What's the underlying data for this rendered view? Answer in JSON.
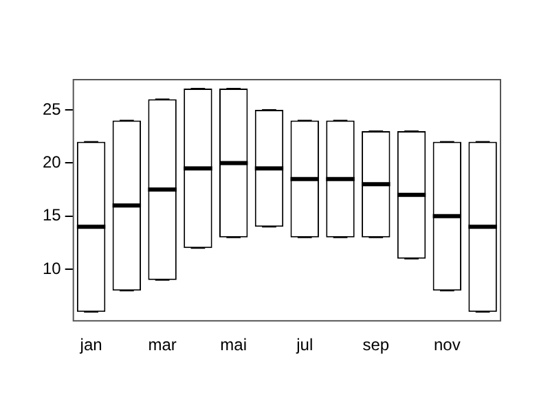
{
  "chart_data": {
    "type": "box",
    "categories": [
      "jan",
      null,
      "mar",
      null,
      "mai",
      null,
      "jul",
      null,
      "sep",
      null,
      "nov",
      null
    ],
    "boxes": [
      {
        "low": 6,
        "q1": 6,
        "median": 14,
        "q3": 22,
        "high": 22
      },
      {
        "low": 8,
        "q1": 8,
        "median": 16,
        "q3": 24,
        "high": 24
      },
      {
        "low": 9,
        "q1": 9,
        "median": 17.5,
        "q3": 26,
        "high": 26
      },
      {
        "low": 12,
        "q1": 12,
        "median": 19.5,
        "q3": 27,
        "high": 27
      },
      {
        "low": 13,
        "q1": 13,
        "median": 20,
        "q3": 27,
        "high": 27
      },
      {
        "low": 14,
        "q1": 14,
        "median": 19.5,
        "q3": 25,
        "high": 25
      },
      {
        "low": 13,
        "q1": 13,
        "median": 18.5,
        "q3": 24,
        "high": 24
      },
      {
        "low": 13,
        "q1": 13,
        "median": 18.5,
        "q3": 24,
        "high": 24
      },
      {
        "low": 13,
        "q1": 13,
        "median": 18,
        "q3": 23,
        "high": 23
      },
      {
        "low": 11,
        "q1": 11,
        "median": 17,
        "q3": 23,
        "high": 23
      },
      {
        "low": 8,
        "q1": 8,
        "median": 15,
        "q3": 22,
        "high": 22
      },
      {
        "low": 6,
        "q1": 6,
        "median": 14,
        "q3": 22,
        "high": 22
      }
    ],
    "ylim": [
      5.16,
      27.84
    ],
    "yticks": [
      10,
      15,
      20,
      25
    ],
    "grid": false,
    "legend": false
  }
}
